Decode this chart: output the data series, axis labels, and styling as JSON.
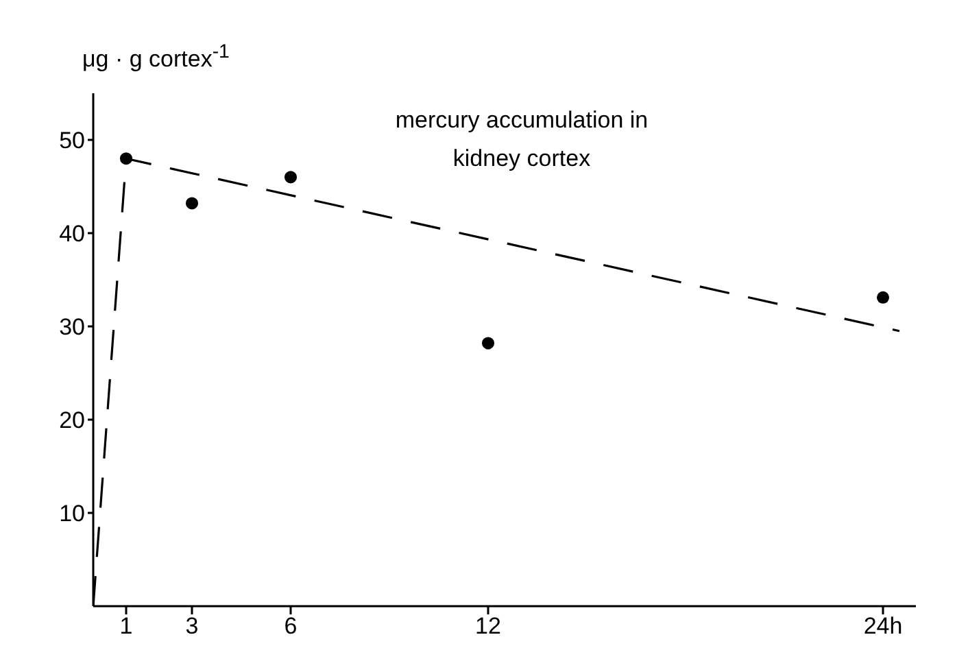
{
  "chart_data": {
    "type": "scatter",
    "title": "mercury accumulation in kidney cortex",
    "ylabel": "μg · g cortex$^{-1}$",
    "series": [
      {
        "color": "#000000",
        "marker": "circle",
        "x": [
          1,
          3,
          6,
          12,
          24
        ],
        "values": [
          48,
          43.2,
          46,
          28.2,
          33.1
        ]
      },
      {
        "type": "line",
        "color": "#000000",
        "line_style": "dashed",
        "marker": "none",
        "x": [
          0,
          1,
          24.5
        ],
        "values": [
          0,
          48,
          29.5
        ]
      }
    ],
    "xlim": [
      0,
      25
    ],
    "xticks": [
      1,
      3,
      6,
      12,
      {
        "value": 24,
        "label": "24h"
      }
    ],
    "ylim": [
      0,
      55
    ],
    "yticks": [
      10,
      20,
      30,
      40,
      50
    ],
    "grid": false
  }
}
